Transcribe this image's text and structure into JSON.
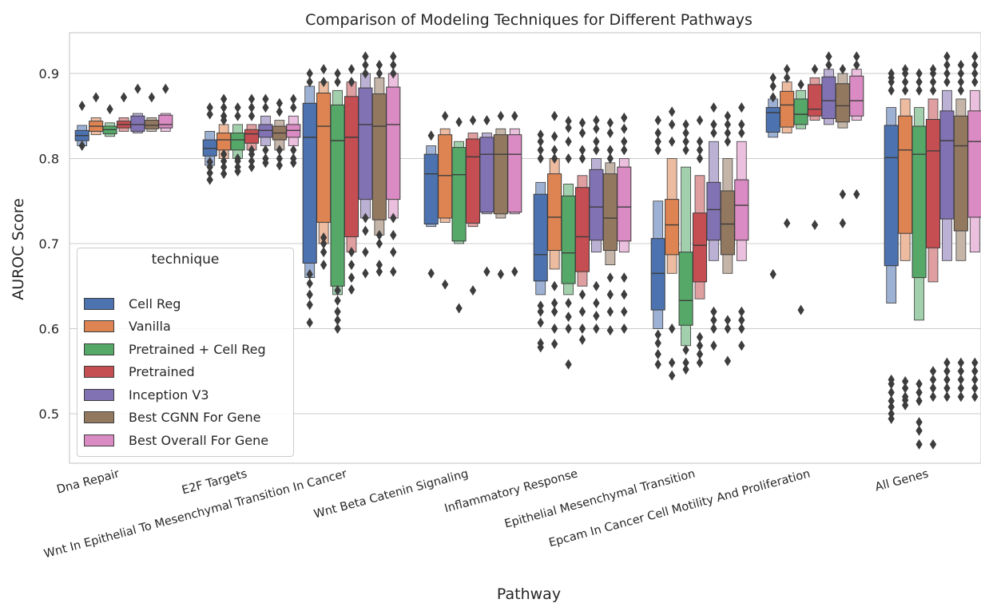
{
  "chart_data": {
    "type": "boxen",
    "title": "Comparison of Modeling Techniques for Different Pathways",
    "xlabel": "Pathway",
    "ylabel": "AUROC Score",
    "ylim": [
      0.445,
      0.948
    ],
    "yticks": [
      0.5,
      0.6,
      0.7,
      0.8,
      0.9
    ],
    "grid": true,
    "legend": {
      "title": "technique",
      "placement": "center-left"
    },
    "categories": [
      "Dna Repair",
      "E2F Targets",
      "Wnt In Epithelial To Mesenchymal Transition In Cancer",
      "Wnt Beta Catenin Signaling",
      "Inflammatory Response",
      "Epithelial Mesenchymal Transition",
      "Epcam In Cancer Cell Motility And Proliferation",
      "All Genes"
    ],
    "series": [
      {
        "name": "Cell Reg",
        "color": "#4c72b0",
        "stats": [
          {
            "q1": 0.821,
            "median": 0.827,
            "q3": 0.833,
            "ext": [
              0.815,
              0.839
            ],
            "out": [
              0.815,
              0.862
            ]
          },
          {
            "q1": 0.803,
            "median": 0.812,
            "q3": 0.822,
            "ext": [
              0.792,
              0.832
            ],
            "out": [
              0.775,
              0.783,
              0.79,
              0.796,
              0.852,
              0.86
            ]
          },
          {
            "q1": 0.677,
            "median": 0.825,
            "q3": 0.865,
            "ext": [
              0.66,
              0.885
            ],
            "out": [
              0.607,
              0.628,
              0.64,
              0.653,
              0.664,
              0.89,
              0.9
            ]
          },
          {
            "q1": 0.723,
            "median": 0.782,
            "q3": 0.805,
            "ext": [
              0.72,
              0.815
            ],
            "out": [
              0.665,
              0.827
            ]
          },
          {
            "q1": 0.656,
            "median": 0.687,
            "q3": 0.758,
            "ext": [
              0.64,
              0.772
            ],
            "out": [
              0.578,
              0.583,
              0.607,
              0.62,
              0.627,
              0.8,
              0.81,
              0.82,
              0.828
            ]
          },
          {
            "q1": 0.622,
            "median": 0.665,
            "q3": 0.706,
            "ext": [
              0.6,
              0.75
            ],
            "out": [
              0.558,
              0.57,
              0.583,
              0.593,
              0.81,
              0.82,
              0.83,
              0.845
            ]
          },
          {
            "q1": 0.831,
            "median": 0.854,
            "q3": 0.86,
            "ext": [
              0.825,
              0.87
            ],
            "out": [
              0.664,
              0.872,
              0.885,
              0.895
            ]
          },
          {
            "q1": 0.674,
            "median": 0.801,
            "q3": 0.839,
            "ext": [
              0.63,
              0.86
            ],
            "out": [
              0.494,
              0.5,
              0.508,
              0.515,
              0.525,
              0.535,
              0.54,
              0.88,
              0.89,
              0.895,
              0.9
            ]
          }
        ]
      },
      {
        "name": "Vanilla",
        "color": "#dd8452",
        "stats": [
          {
            "q1": 0.832,
            "median": 0.838,
            "q3": 0.844,
            "ext": [
              0.828,
              0.848
            ],
            "out": [
              0.872
            ]
          },
          {
            "q1": 0.81,
            "median": 0.822,
            "q3": 0.83,
            "ext": [
              0.8,
              0.84
            ],
            "out": [
              0.782,
              0.79,
              0.797,
              0.805,
              0.845,
              0.85,
              0.86,
              0.87
            ]
          },
          {
            "q1": 0.725,
            "median": 0.838,
            "q3": 0.877,
            "ext": [
              0.7,
              0.89
            ],
            "out": [
              0.675,
              0.69,
              0.7,
              0.707,
              0.89,
              0.905
            ]
          },
          {
            "q1": 0.73,
            "median": 0.78,
            "q3": 0.828,
            "ext": [
              0.725,
              0.835
            ],
            "out": [
              0.652,
              0.85
            ]
          },
          {
            "q1": 0.692,
            "median": 0.731,
            "q3": 0.782,
            "ext": [
              0.67,
              0.8
            ],
            "out": [
              0.582,
              0.6,
              0.62,
              0.63,
              0.65,
              0.8,
              0.81,
              0.826,
              0.85
            ]
          },
          {
            "q1": 0.687,
            "median": 0.722,
            "q3": 0.752,
            "ext": [
              0.665,
              0.8
            ],
            "out": [
              0.545,
              0.56,
              0.6,
              0.82,
              0.84,
              0.855
            ]
          },
          {
            "q1": 0.837,
            "median": 0.863,
            "q3": 0.879,
            "ext": [
              0.83,
              0.89
            ],
            "out": [
              0.724,
              0.895,
              0.905
            ]
          },
          {
            "q1": 0.712,
            "median": 0.81,
            "q3": 0.85,
            "ext": [
              0.68,
              0.87
            ],
            "out": [
              0.51,
              0.516,
              0.52,
              0.53,
              0.538,
              0.88,
              0.89,
              0.9,
              0.905
            ]
          }
        ]
      },
      {
        "name": "Pretrained + Cell Reg",
        "color": "#55a868",
        "stats": [
          {
            "q1": 0.829,
            "median": 0.834,
            "q3": 0.838,
            "ext": [
              0.826,
              0.842
            ],
            "out": [
              0.858
            ]
          },
          {
            "q1": 0.81,
            "median": 0.822,
            "q3": 0.83,
            "ext": [
              0.8,
              0.84
            ],
            "out": [
              0.785,
              0.79,
              0.797,
              0.8,
              0.85,
              0.86
            ]
          },
          {
            "q1": 0.65,
            "median": 0.821,
            "q3": 0.863,
            "ext": [
              0.64,
              0.88
            ],
            "out": [
              0.6,
              0.61,
              0.62,
              0.633,
              0.645,
              0.89,
              0.9
            ]
          },
          {
            "q1": 0.703,
            "median": 0.781,
            "q3": 0.813,
            "ext": [
              0.7,
              0.82
            ],
            "out": [
              0.624,
              0.843
            ]
          },
          {
            "q1": 0.653,
            "median": 0.689,
            "q3": 0.756,
            "ext": [
              0.64,
              0.77
            ],
            "out": [
              0.558,
              0.6,
              0.614,
              0.63,
              0.8,
              0.82,
              0.836,
              0.844
            ]
          },
          {
            "q1": 0.604,
            "median": 0.633,
            "q3": 0.69,
            "ext": [
              0.58,
              0.79
            ],
            "out": [
              0.552,
              0.56,
              0.575,
              0.81,
              0.82,
              0.83,
              0.84
            ]
          },
          {
            "q1": 0.84,
            "median": 0.852,
            "q3": 0.87,
            "ext": [
              0.835,
              0.88
            ],
            "out": [
              0.622,
              0.887
            ]
          },
          {
            "q1": 0.66,
            "median": 0.805,
            "q3": 0.838,
            "ext": [
              0.61,
              0.86
            ],
            "out": [
              0.464,
              0.48,
              0.49,
              0.515,
              0.525,
              0.535,
              0.88,
              0.89,
              0.9
            ]
          }
        ]
      },
      {
        "name": "Pretrained",
        "color": "#c44e52",
        "stats": [
          {
            "q1": 0.836,
            "median": 0.84,
            "q3": 0.844,
            "ext": [
              0.832,
              0.848
            ],
            "out": [
              0.872
            ]
          },
          {
            "q1": 0.818,
            "median": 0.829,
            "q3": 0.834,
            "ext": [
              0.81,
              0.84
            ],
            "out": [
              0.79,
              0.797,
              0.805,
              0.81,
              0.85,
              0.86,
              0.87
            ]
          },
          {
            "q1": 0.708,
            "median": 0.825,
            "q3": 0.873,
            "ext": [
              0.69,
              0.89
            ],
            "out": [
              0.646,
              0.66,
              0.675,
              0.69,
              0.89,
              0.905
            ]
          },
          {
            "q1": 0.724,
            "median": 0.802,
            "q3": 0.823,
            "ext": [
              0.72,
              0.83
            ],
            "out": [
              0.645,
              0.845
            ]
          },
          {
            "q1": 0.667,
            "median": 0.708,
            "q3": 0.766,
            "ext": [
              0.65,
              0.78
            ],
            "out": [
              0.587,
              0.6,
              0.62,
              0.64,
              0.8,
              0.81,
              0.83,
              0.842
            ]
          },
          {
            "q1": 0.655,
            "median": 0.698,
            "q3": 0.736,
            "ext": [
              0.635,
              0.78
            ],
            "out": [
              0.56,
              0.57,
              0.58,
              0.59,
              0.8,
              0.81,
              0.82,
              0.845
            ]
          },
          {
            "q1": 0.85,
            "median": 0.858,
            "q3": 0.887,
            "ext": [
              0.845,
              0.895
            ],
            "out": [
              0.722,
              0.905
            ]
          },
          {
            "q1": 0.695,
            "median": 0.809,
            "q3": 0.846,
            "ext": [
              0.655,
              0.87
            ],
            "out": [
              0.464,
              0.52,
              0.53,
              0.54,
              0.55,
              0.88,
              0.89,
              0.9,
              0.905
            ]
          }
        ]
      },
      {
        "name": "Inception V3",
        "color": "#8172b3",
        "stats": [
          {
            "q1": 0.832,
            "median": 0.84,
            "q3": 0.85,
            "ext": [
              0.83,
              0.853
            ],
            "out": [
              0.882
            ]
          },
          {
            "q1": 0.825,
            "median": 0.833,
            "q3": 0.84,
            "ext": [
              0.815,
              0.85
            ],
            "out": [
              0.795,
              0.8,
              0.81,
              0.86,
              0.87
            ]
          },
          {
            "q1": 0.752,
            "median": 0.84,
            "q3": 0.883,
            "ext": [
              0.73,
              0.9
            ],
            "out": [
              0.665,
              0.69,
              0.715,
              0.73,
              0.9,
              0.91,
              0.92
            ]
          },
          {
            "q1": 0.737,
            "median": 0.805,
            "q3": 0.825,
            "ext": [
              0.735,
              0.83
            ],
            "out": [
              0.667,
              0.845
            ]
          },
          {
            "q1": 0.704,
            "median": 0.743,
            "q3": 0.787,
            "ext": [
              0.69,
              0.8
            ],
            "out": [
              0.6,
              0.615,
              0.63,
              0.65,
              0.81,
              0.82,
              0.835,
              0.845
            ]
          },
          {
            "q1": 0.704,
            "median": 0.74,
            "q3": 0.772,
            "ext": [
              0.68,
              0.82
            ],
            "out": [
              0.58,
              0.6,
              0.61,
              0.62,
              0.83,
              0.84,
              0.86
            ]
          },
          {
            "q1": 0.847,
            "median": 0.868,
            "q3": 0.896,
            "ext": [
              0.84,
              0.905
            ],
            "out": [
              0.91,
              0.92
            ]
          },
          {
            "q1": 0.729,
            "median": 0.821,
            "q3": 0.856,
            "ext": [
              0.68,
              0.88
            ],
            "out": [
              0.52,
              0.53,
              0.54,
              0.55,
              0.56,
              0.89,
              0.9,
              0.91,
              0.92
            ]
          }
        ]
      },
      {
        "name": "Best CGNN For Gene",
        "color": "#937860",
        "stats": [
          {
            "q1": 0.835,
            "median": 0.839,
            "q3": 0.845,
            "ext": [
              0.832,
              0.848
            ],
            "out": [
              0.872
            ]
          },
          {
            "q1": 0.822,
            "median": 0.83,
            "q3": 0.838,
            "ext": [
              0.81,
              0.845
            ],
            "out": [
              0.792,
              0.8,
              0.81,
              0.855,
              0.865
            ]
          },
          {
            "q1": 0.728,
            "median": 0.838,
            "q3": 0.876,
            "ext": [
              0.71,
              0.895
            ],
            "out": [
              0.667,
              0.675,
              0.7,
              0.71,
              0.9,
              0.91
            ]
          },
          {
            "q1": 0.735,
            "median": 0.805,
            "q3": 0.828,
            "ext": [
              0.73,
              0.835
            ],
            "out": [
              0.664,
              0.85
            ]
          },
          {
            "q1": 0.692,
            "median": 0.73,
            "q3": 0.782,
            "ext": [
              0.675,
              0.795
            ],
            "out": [
              0.598,
              0.62,
              0.64,
              0.66,
              0.8,
              0.81,
              0.83,
              0.842
            ]
          },
          {
            "q1": 0.687,
            "median": 0.723,
            "q3": 0.762,
            "ext": [
              0.665,
              0.8
            ],
            "out": [
              0.562,
              0.6,
              0.61,
              0.82,
              0.83,
              0.84,
              0.85
            ]
          },
          {
            "q1": 0.843,
            "median": 0.862,
            "q3": 0.888,
            "ext": [
              0.836,
              0.9
            ],
            "out": [
              0.724,
              0.758,
              0.905
            ]
          },
          {
            "q1": 0.715,
            "median": 0.815,
            "q3": 0.85,
            "ext": [
              0.68,
              0.87
            ],
            "out": [
              0.52,
              0.53,
              0.54,
              0.55,
              0.56,
              0.88,
              0.89,
              0.9,
              0.91
            ]
          }
        ]
      },
      {
        "name": "Best Overall For Gene",
        "color": "#da8bc3",
        "stats": [
          {
            "q1": 0.836,
            "median": 0.84,
            "q3": 0.851,
            "ext": [
              0.832,
              0.853
            ],
            "out": [
              0.882
            ]
          },
          {
            "q1": 0.825,
            "median": 0.833,
            "q3": 0.84,
            "ext": [
              0.815,
              0.85
            ],
            "out": [
              0.795,
              0.8,
              0.81,
              0.86,
              0.87
            ]
          },
          {
            "q1": 0.752,
            "median": 0.84,
            "q3": 0.884,
            "ext": [
              0.73,
              0.9
            ],
            "out": [
              0.667,
              0.69,
              0.71,
              0.73,
              0.9,
              0.91,
              0.92
            ]
          },
          {
            "q1": 0.737,
            "median": 0.805,
            "q3": 0.828,
            "ext": [
              0.735,
              0.835
            ],
            "out": [
              0.667,
              0.85
            ]
          },
          {
            "q1": 0.703,
            "median": 0.743,
            "q3": 0.79,
            "ext": [
              0.69,
              0.8
            ],
            "out": [
              0.6,
              0.62,
              0.64,
              0.66,
              0.81,
              0.82,
              0.835,
              0.848
            ]
          },
          {
            "q1": 0.704,
            "median": 0.745,
            "q3": 0.775,
            "ext": [
              0.68,
              0.82
            ],
            "out": [
              0.58,
              0.6,
              0.61,
              0.62,
              0.83,
              0.84,
              0.86
            ]
          },
          {
            "q1": 0.85,
            "median": 0.868,
            "q3": 0.897,
            "ext": [
              0.845,
              0.905
            ],
            "out": [
              0.758,
              0.91,
              0.92
            ]
          },
          {
            "q1": 0.731,
            "median": 0.82,
            "q3": 0.856,
            "ext": [
              0.69,
              0.88
            ],
            "out": [
              0.52,
              0.53,
              0.54,
              0.55,
              0.56,
              0.89,
              0.9,
              0.91,
              0.92
            ]
          }
        ]
      }
    ]
  }
}
